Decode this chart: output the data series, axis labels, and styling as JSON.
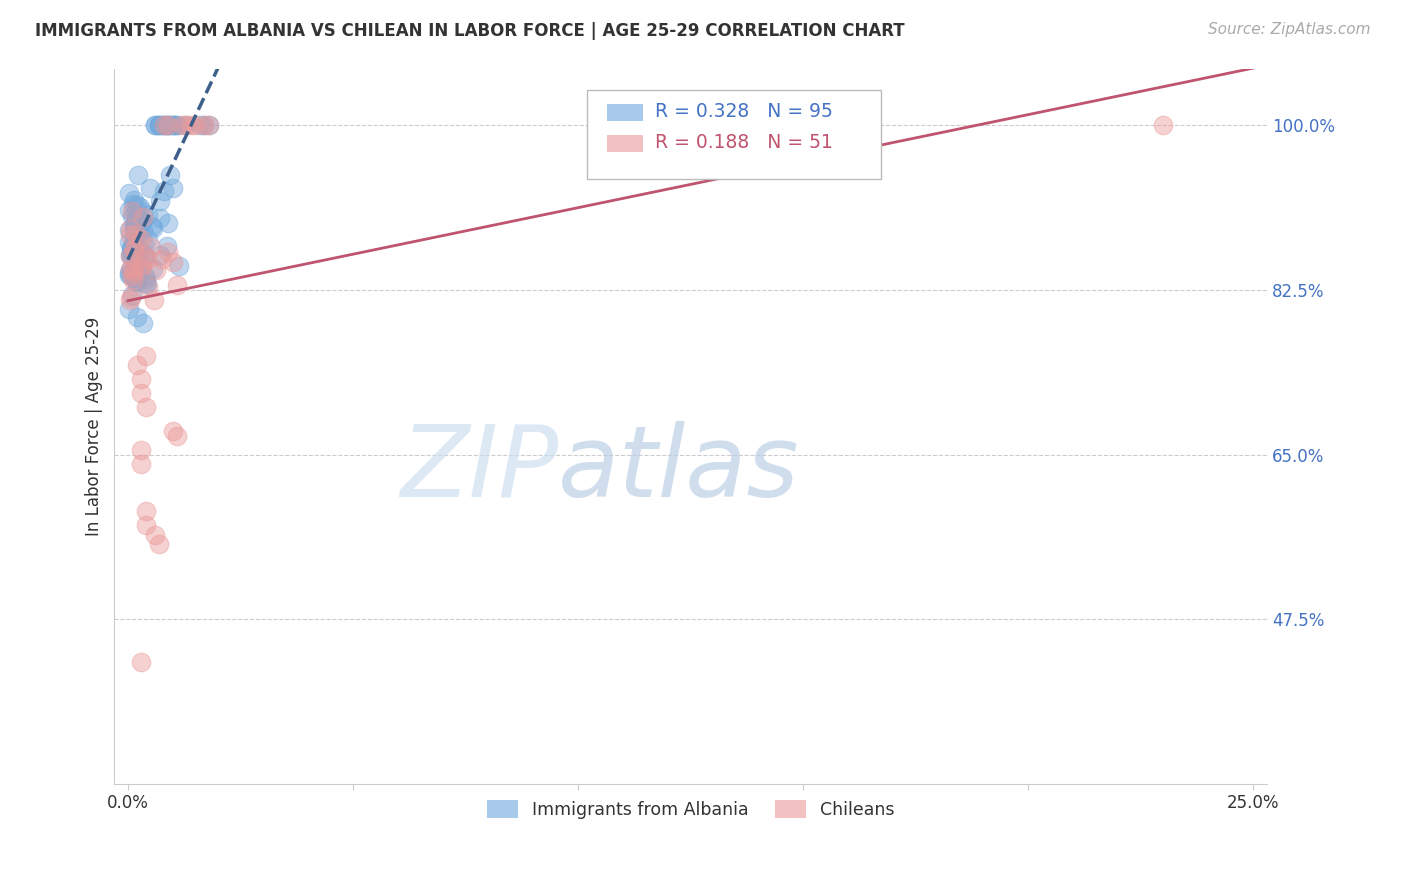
{
  "title": "IMMIGRANTS FROM ALBANIA VS CHILEAN IN LABOR FORCE | AGE 25-29 CORRELATION CHART",
  "source": "Source: ZipAtlas.com",
  "ylabel": "In Labor Force | Age 25-29",
  "albania_color": "#6fa8dc",
  "albania_line_color": "#3d5f8a",
  "chilean_color": "#ea9999",
  "chilean_line_color": "#c0546e",
  "albania_R": 0.328,
  "albania_N": 95,
  "chilean_R": 0.188,
  "chilean_N": 51,
  "legend_label_albania": "Immigrants from Albania",
  "legend_label_chilean": "Chileans",
  "xmin": 0.0,
  "xmax": 0.25,
  "ymin": 0.3,
  "ymax": 1.06,
  "ytick_values": [
    0.475,
    0.65,
    0.825,
    1.0
  ],
  "grid_color": "#cccccc",
  "watermark_text": "ZIPatlas",
  "watermark_color": "#dce9f5",
  "title_fontsize": 12,
  "source_fontsize": 11,
  "tick_fontsize": 12
}
